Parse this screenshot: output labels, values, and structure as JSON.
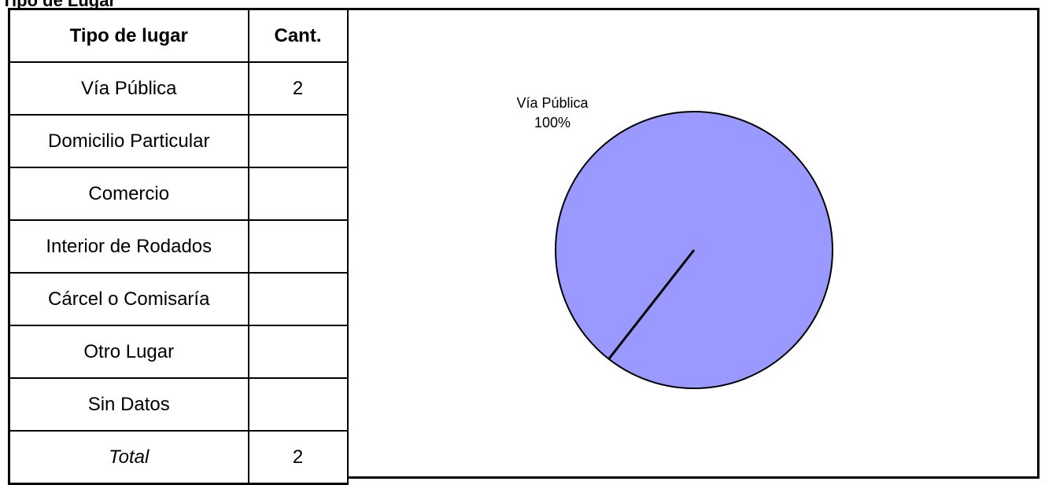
{
  "page_title": "Tipo de Lugar",
  "table": {
    "headers": [
      "Tipo de lugar",
      "Cant."
    ],
    "rows": [
      {
        "label": "Vía Pública",
        "value": "2"
      },
      {
        "label": "Domicilio Particular",
        "value": ""
      },
      {
        "label": "Comercio",
        "value": ""
      },
      {
        "label": "Interior de Rodados",
        "value": ""
      },
      {
        "label": "Cárcel o Comisaría",
        "value": ""
      },
      {
        "label": "Otro Lugar",
        "value": ""
      },
      {
        "label": "Sin Datos",
        "value": ""
      }
    ],
    "total": {
      "label": "Total",
      "value": "2"
    }
  },
  "chart_data": {
    "type": "pie",
    "categories": [
      "Vía Pública"
    ],
    "values": [
      2
    ],
    "data_labels": [
      {
        "name": "Vía Pública",
        "percent": "100%"
      }
    ],
    "colors": {
      "slice": "#9999ff",
      "outline": "#000000"
    }
  }
}
